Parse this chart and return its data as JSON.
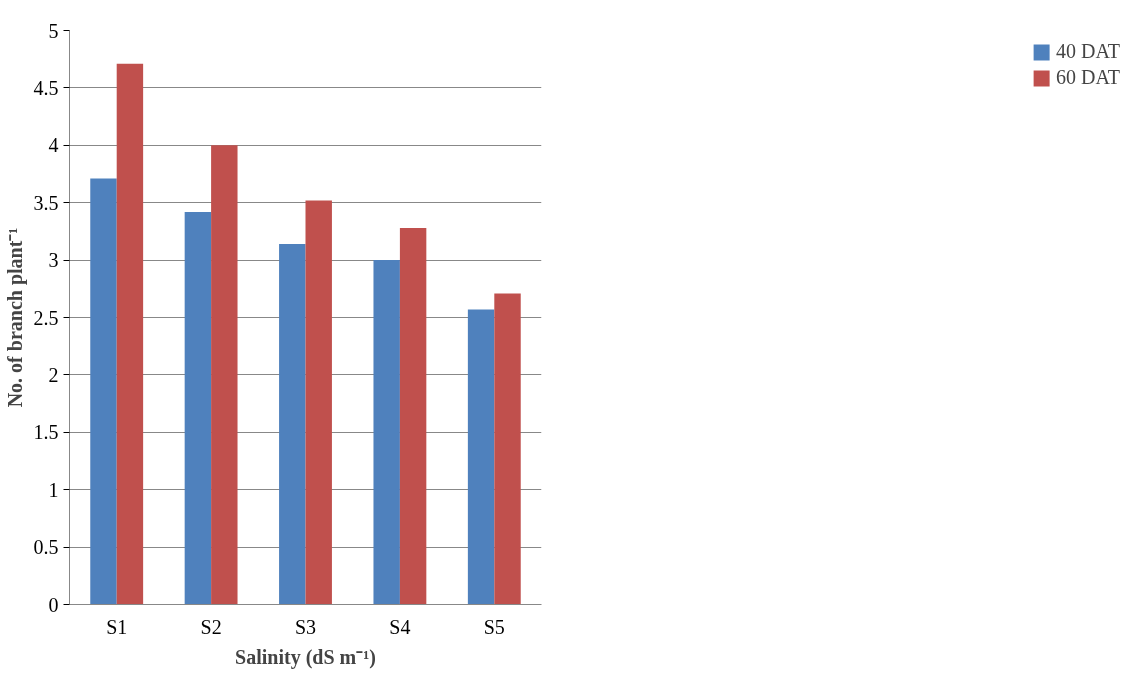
{
  "chart_data": {
    "type": "bar",
    "xlabel": "Salinity (dS m⁻¹)",
    "ylabel": "No. of branch plant⁻¹",
    "categories": [
      "S1",
      "S2",
      "S3",
      "S4",
      "S5"
    ],
    "series": [
      {
        "name": "40 DAT",
        "color": "#4f81bd",
        "values": [
          3.71,
          3.42,
          3.14,
          3.0,
          2.57
        ]
      },
      {
        "name": "60 DAT",
        "color": "#c0504d",
        "values": [
          4.71,
          4.0,
          3.52,
          3.28,
          2.71
        ]
      }
    ],
    "ylim": [
      0,
      5
    ],
    "yticks": [
      0,
      0.5,
      1,
      1.5,
      2,
      2.5,
      3,
      3.5,
      4,
      4.5,
      5
    ],
    "grid": "y",
    "legend": "right"
  }
}
